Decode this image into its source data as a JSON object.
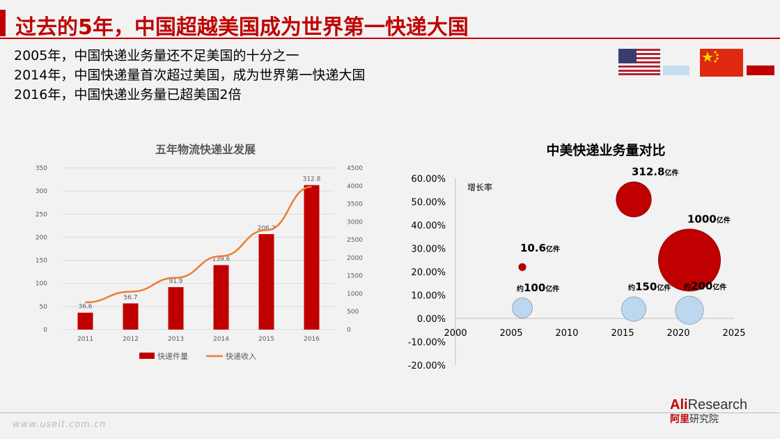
{
  "header": {
    "title": "过去的5年，中国超越美国成为世界第一快递大国"
  },
  "bullets": [
    "2005年，中国快递业务量还不足美国的十分之一",
    "2014年，中国快递量首次超过美国，成为世界第一快递大国",
    "2016年，中国快递业务量已超美国2倍"
  ],
  "flags": {
    "us": "us-flag",
    "cn": "china-flag",
    "us_color": "#c6ddf0",
    "cn_color": "#c00000"
  },
  "chart_data": [
    {
      "type": "bar",
      "title": "五年物流快递业发展",
      "categories": [
        "2011",
        "2012",
        "2013",
        "2014",
        "2015",
        "2016"
      ],
      "series": [
        {
          "name": "快递件量",
          "type": "bar",
          "axis": "left",
          "color": "#c00000",
          "values": [
            36.6,
            56.7,
            91.9,
            139.6,
            206.7,
            312.8
          ],
          "labels": [
            "36.6",
            "56.7",
            "91.9",
            "139.6",
            "206.7",
            "312.8"
          ]
        },
        {
          "name": "快递收入",
          "type": "line",
          "axis": "right",
          "color": "#ed7d31",
          "values": [
            758,
            1055,
            1442,
            2045,
            2770,
            3974
          ]
        }
      ],
      "ylim": [
        0,
        350
      ],
      "yticks": [
        "0",
        "50",
        "100",
        "150",
        "200",
        "250",
        "300",
        "350"
      ],
      "y2lim": [
        0,
        4500
      ],
      "y2ticks": [
        "0",
        "500",
        "1000",
        "1500",
        "2000",
        "2500",
        "3000",
        "3500",
        "4000",
        "4500"
      ],
      "grid": true,
      "legend": "bottom"
    },
    {
      "type": "scatter",
      "title": "中美快递业务量对比",
      "ylabel": "增长率",
      "xlim": [
        2000,
        2025
      ],
      "xticks": [
        "2000",
        "2005",
        "2010",
        "2015",
        "2020",
        "2025"
      ],
      "ylim": [
        -0.2,
        0.6
      ],
      "yticks": [
        "60.00%",
        "50.00%",
        "40.00%",
        "30.00%",
        "20.00%",
        "10.00%",
        "0.00%",
        "-10.00%",
        "-20.00%"
      ],
      "series": [
        {
          "name": "中国",
          "color": "#c00000",
          "points": [
            {
              "x": 2006,
              "y": 0.22,
              "size": 10.6,
              "label": "10.6",
              "unit": "亿件",
              "prefix": ""
            },
            {
              "x": 2016,
              "y": 0.51,
              "size": 312.8,
              "label": "312.8",
              "unit": "亿件",
              "prefix": ""
            },
            {
              "x": 2021,
              "y": 0.25,
              "size": 1000,
              "label": "1000",
              "unit": "亿件",
              "prefix": ""
            }
          ]
        },
        {
          "name": "美国",
          "color": "#bdd7ee",
          "points": [
            {
              "x": 2006,
              "y": 0.045,
              "size": 100,
              "label": "100",
              "unit": "亿件",
              "prefix": "约"
            },
            {
              "x": 2016,
              "y": 0.04,
              "size": 150,
              "label": "150",
              "unit": "亿件",
              "prefix": "约"
            },
            {
              "x": 2021,
              "y": 0.035,
              "size": 200,
              "label": "200",
              "unit": "亿件",
              "prefix": "约"
            }
          ]
        }
      ]
    }
  ],
  "footer": {
    "watermark": "www.useit.com.cn",
    "logo_ali": "Ali",
    "logo_research": "Research",
    "logo_cn_red": "阿里",
    "logo_cn": "研究院"
  }
}
